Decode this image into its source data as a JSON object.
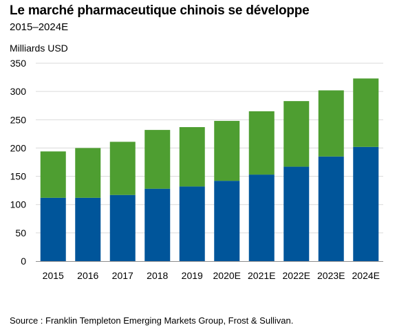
{
  "header": {
    "title": "Le marché pharmaceutique chinois se développe",
    "subtitle": "2015–2024E"
  },
  "chart_data": {
    "type": "bar",
    "stacked": true,
    "title": "Le marché pharmaceutique chinois se développe",
    "subtitle": "2015–2024E",
    "ylabel": "Milliards USD",
    "xlabel": "",
    "ylim": [
      0,
      350
    ],
    "yticks": [
      0,
      50,
      100,
      150,
      200,
      250,
      300,
      350
    ],
    "grid": "horizontal",
    "legend": "none",
    "categories": [
      "2015",
      "2016",
      "2017",
      "2018",
      "2019",
      "2020E",
      "2021E",
      "2022E",
      "2023E",
      "2024E"
    ],
    "series": [
      {
        "color": "#00559A",
        "values": [
          112,
          112,
          117,
          128,
          132,
          142,
          153,
          167,
          185,
          202
        ]
      },
      {
        "color": "#4E9E31",
        "values": [
          82,
          88,
          94,
          104,
          105,
          106,
          112,
          116,
          117,
          121
        ]
      }
    ]
  },
  "footer": {
    "source": "Source : Franklin Templeton Emerging Markets Group, Frost & Sullivan."
  }
}
